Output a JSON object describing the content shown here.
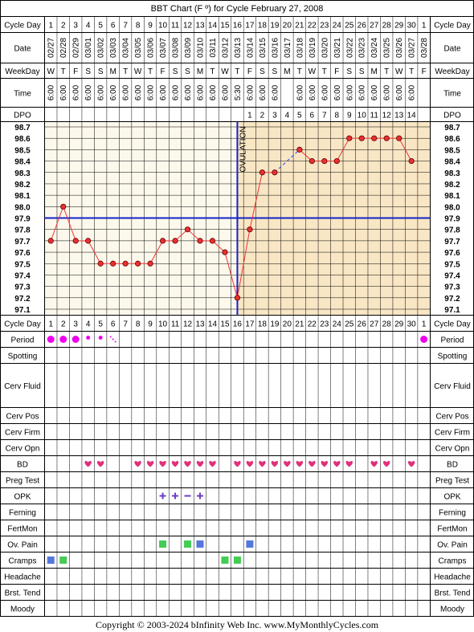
{
  "title": "BBT Chart (F º) for Cycle February 27, 2008",
  "footer": "Copyright © 2003-2024 bInfinity Web Inc.     www.MyMonthlyCycles.com",
  "ovulation_label": "OVULATION",
  "colors": {
    "grid": "#000000",
    "pre_bg": "#fdf8ec",
    "post_bg": "#f8e6c4",
    "temp_line": "#ee3333",
    "point_fill": "#e83030",
    "coverline": "#1522c8",
    "period": "#ee00ee",
    "bd_heart": "#e0307a",
    "opk": "#6a3ec8",
    "ov_pain": "#44cc55",
    "ov_pain_alt": "#5577dd",
    "cramps_blue": "#5577dd",
    "cramps_green": "#44cc55"
  },
  "row_labels": {
    "cycle_day": "Cycle Day",
    "date": "Date",
    "weekday": "WeekDay",
    "time": "Time",
    "dpo": "DPO",
    "period": "Period",
    "spotting": "Spotting",
    "cerv_fluid": "Cerv Fluid",
    "cerv_pos": "Cerv Pos",
    "cerv_firm": "Cerv Firm",
    "cerv_opn": "Cerv Opn",
    "bd": "BD",
    "preg_test": "Preg Test",
    "opk": "OPK",
    "ferning": "Ferning",
    "fertmon": "FertMon",
    "ov_pain": "Ov. Pain",
    "cramps": "Cramps",
    "headache": "Headache",
    "brst_tend": "Brst. Tend",
    "moody": "Moody"
  },
  "cycle_days": [
    "1",
    "2",
    "3",
    "4",
    "5",
    "6",
    "7",
    "8",
    "9",
    "10",
    "11",
    "12",
    "13",
    "14",
    "15",
    "16",
    "17",
    "18",
    "19",
    "20",
    "21",
    "22",
    "23",
    "24",
    "25",
    "26",
    "27",
    "28",
    "29",
    "30",
    "1"
  ],
  "dates": [
    "02/27",
    "02/28",
    "02/29",
    "03/01",
    "03/02",
    "03/03",
    "03/04",
    "03/05",
    "03/06",
    "03/07",
    "03/08",
    "03/09",
    "03/10",
    "03/11",
    "03/12",
    "03/13",
    "03/14",
    "03/15",
    "03/16",
    "03/17",
    "03/18",
    "03/19",
    "03/20",
    "03/21",
    "03/22",
    "03/23",
    "03/24",
    "03/25",
    "03/26",
    "03/27",
    "03/28"
  ],
  "weekdays": [
    "W",
    "T",
    "F",
    "S",
    "S",
    "M",
    "T",
    "W",
    "T",
    "F",
    "S",
    "S",
    "M",
    "T",
    "W",
    "T",
    "F",
    "S",
    "S",
    "M",
    "T",
    "W",
    "T",
    "F",
    "S",
    "S",
    "M",
    "T",
    "W",
    "T",
    "F"
  ],
  "times": [
    "6:00",
    "6:00",
    "6:00",
    "6:00",
    "6:00",
    "6:00",
    "6:00",
    "6:00",
    "6:00",
    "6:00",
    "6:00",
    "6:00",
    "6:00",
    "6:00",
    "6:00",
    "5:30",
    "6:00",
    "6:00",
    "6:00",
    "",
    "6:00",
    "6:00",
    "6:00",
    "6:00",
    "6:00",
    "6:00",
    "6:00",
    "6:00",
    "6:00",
    "6:00",
    ""
  ],
  "dpo": [
    "",
    "",
    "",
    "",
    "",
    "",
    "",
    "",
    "",
    "",
    "",
    "",
    "",
    "",
    "",
    "",
    "1",
    "2",
    "3",
    "4",
    "5",
    "6",
    "7",
    "8",
    "9",
    "10",
    "11",
    "12",
    "13",
    "14",
    ""
  ],
  "chart_data": {
    "type": "line",
    "title": "BBT Chart (F º) for Cycle February 27, 2008",
    "x": [
      1,
      2,
      3,
      4,
      5,
      6,
      7,
      8,
      9,
      10,
      11,
      12,
      13,
      14,
      15,
      16,
      17,
      18,
      19,
      20,
      21,
      22,
      23,
      24,
      25,
      26,
      27,
      28,
      29,
      30,
      31
    ],
    "y": [
      97.7,
      98.0,
      97.7,
      97.7,
      97.5,
      97.5,
      97.5,
      97.5,
      97.5,
      97.7,
      97.7,
      97.8,
      97.7,
      97.7,
      97.6,
      97.2,
      97.8,
      98.3,
      98.3,
      null,
      98.5,
      98.4,
      98.4,
      98.4,
      98.6,
      98.6,
      98.6,
      98.6,
      98.6,
      98.4,
      null
    ],
    "ylim": [
      97.1,
      98.7
    ],
    "yticks": [
      "98.7",
      "98.6",
      "98.5",
      "98.4",
      "98.3",
      "98.2",
      "98.1",
      "98.0",
      "97.9",
      "97.8",
      "97.7",
      "97.6",
      "97.5",
      "97.4",
      "97.3",
      "97.2",
      "97.1"
    ],
    "coverline": 97.9,
    "ovulation_day": 16,
    "grid": true
  },
  "period": [
    2,
    2,
    2,
    1,
    1,
    3,
    0,
    0,
    0,
    0,
    0,
    0,
    0,
    0,
    0,
    0,
    0,
    0,
    0,
    0,
    0,
    0,
    0,
    0,
    0,
    0,
    0,
    0,
    0,
    0,
    2
  ],
  "bd": [
    4,
    5,
    8,
    9,
    10,
    11,
    12,
    13,
    14,
    16,
    17,
    18,
    19,
    20,
    21,
    22,
    23,
    24,
    25,
    27,
    28,
    30
  ],
  "opk": [
    {
      "day": 10,
      "sign": "+"
    },
    {
      "day": 11,
      "sign": "+"
    },
    {
      "day": 12,
      "sign": "–"
    },
    {
      "day": 13,
      "sign": "+"
    }
  ],
  "ov_pain": [
    {
      "day": 10,
      "color": "green"
    },
    {
      "day": 12,
      "color": "green"
    },
    {
      "day": 13,
      "color": "blue"
    },
    {
      "day": 17,
      "color": "blue"
    }
  ],
  "cramps": [
    {
      "day": 1,
      "color": "blue"
    },
    {
      "day": 2,
      "color": "green"
    },
    {
      "day": 15,
      "color": "green"
    },
    {
      "day": 16,
      "color": "green"
    }
  ]
}
